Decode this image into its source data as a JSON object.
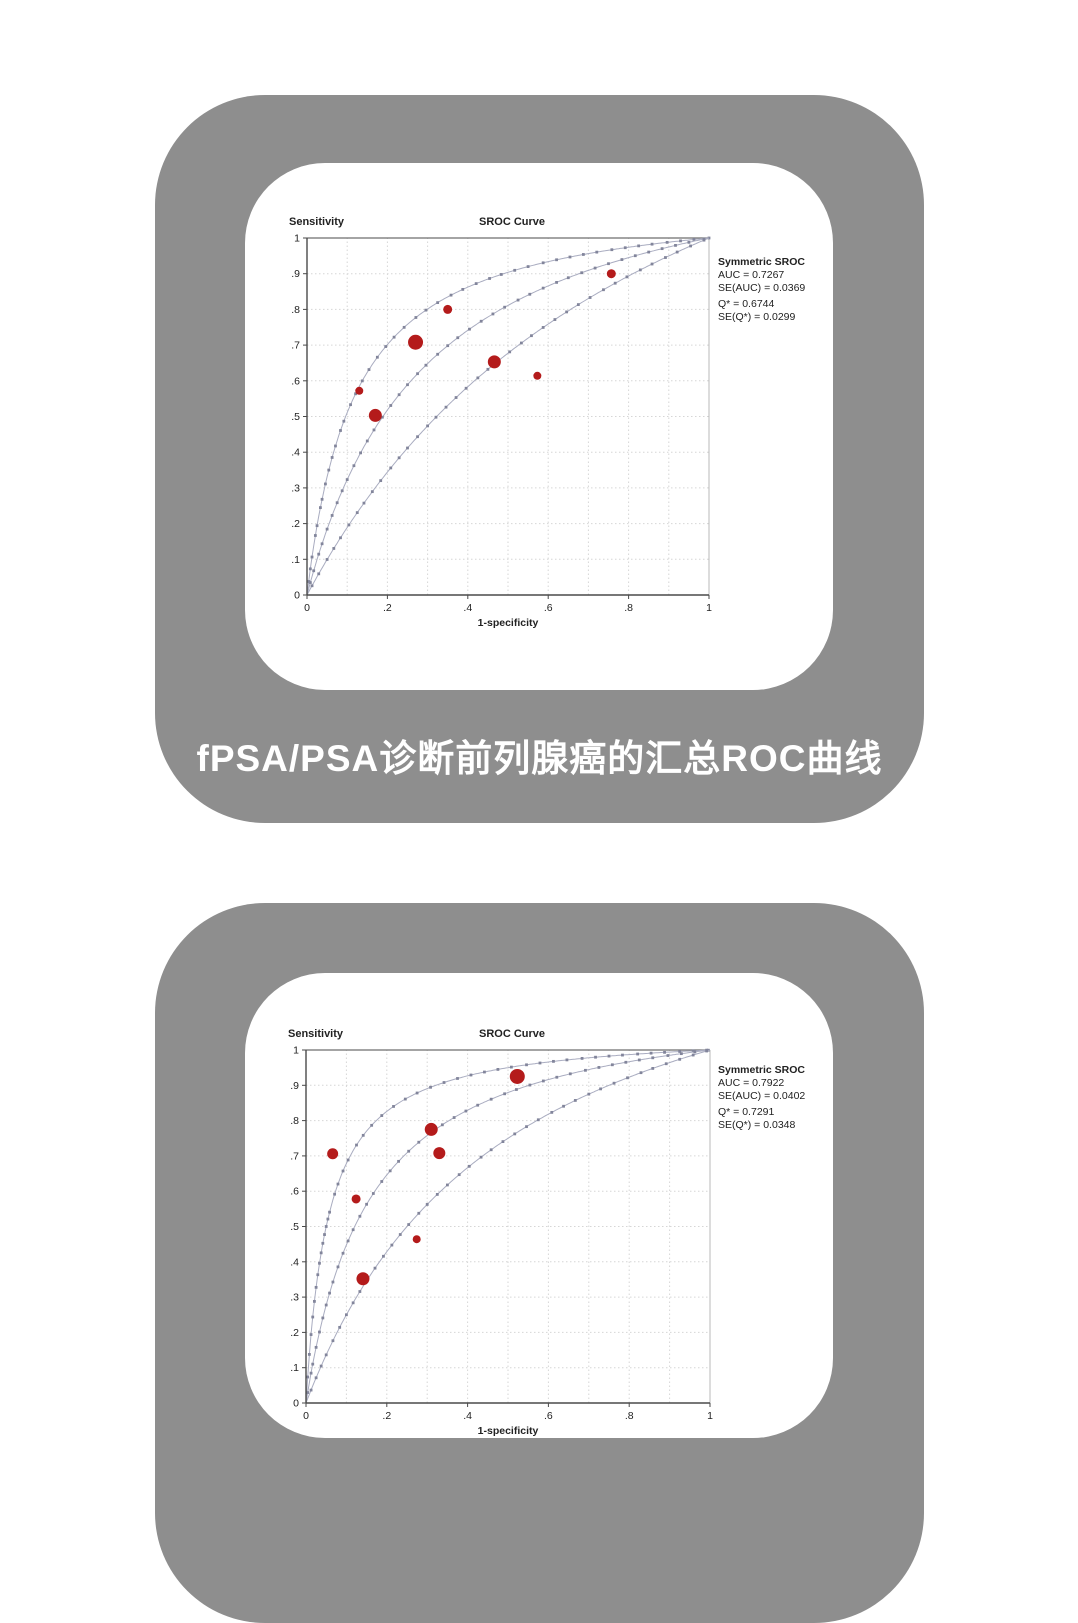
{
  "caption": "fPSA/PSA诊断前列腺癌的汇总ROC曲线",
  "colors": {
    "panel": "#8e8e8e",
    "card": "#ffffff",
    "point": "#b41b1b",
    "curve_line": "#a9acc0",
    "curve_marker": "#82859b",
    "axis": "#4a4a4a",
    "border_top": "#6e6e6e",
    "border_right": "#b8b8b8",
    "grid": "#d6d6d6",
    "text": "#222222"
  },
  "chart_data": [
    {
      "type": "scatter",
      "title": "SROC Curve",
      "ylabel": "Sensitivity",
      "xlabel": "1-specificity",
      "xlim": [
        0,
        1
      ],
      "ylim": [
        0,
        1
      ],
      "grid": true,
      "x_ticks": [
        "0",
        ".2",
        ".4",
        ".6",
        ".8",
        "1"
      ],
      "y_ticks": [
        "0",
        ".1",
        ".2",
        ".3",
        ".4",
        ".5",
        ".6",
        ".7",
        ".8",
        ".9",
        "1"
      ],
      "legend": {
        "position": "right",
        "title": "Symmetric SROC",
        "lines": [
          "AUC = 0.7267",
          "SE(AUC) = 0.0369",
          "Q* = 0.6744",
          "SE(Q*) = 0.0299"
        ]
      },
      "series": [
        {
          "name": "studies",
          "marker": "circle",
          "points": [
            {
              "x": 0.13,
              "y": 0.572,
              "r": 4
            },
            {
              "x": 0.17,
              "y": 0.503,
              "r": 6.5
            },
            {
              "x": 0.27,
              "y": 0.708,
              "r": 7.5
            },
            {
              "x": 0.35,
              "y": 0.8,
              "r": 4.5
            },
            {
              "x": 0.466,
              "y": 0.653,
              "r": 6.5
            },
            {
              "x": 0.573,
              "y": 0.614,
              "r": 4
            },
            {
              "x": 0.757,
              "y": 0.9,
              "r": 4.5
            }
          ]
        }
      ],
      "curves": [
        {
          "name": "confidence-band-upper",
          "k": 9.4
        },
        {
          "name": "sroc-curve",
          "k": 4.3
        },
        {
          "name": "confidence-band-lower",
          "k": 2.1
        }
      ]
    },
    {
      "type": "scatter",
      "title": "SROC Curve",
      "ylabel": "Sensitivity",
      "xlabel": "1-specificity",
      "xlim": [
        0,
        1
      ],
      "ylim": [
        0,
        1
      ],
      "grid": true,
      "x_ticks": [
        "0",
        ".2",
        ".4",
        ".6",
        ".8",
        "1"
      ],
      "y_ticks": [
        "0",
        ".1",
        ".2",
        ".3",
        ".4",
        ".5",
        ".6",
        ".7",
        ".8",
        ".9",
        "1"
      ],
      "legend": {
        "position": "right",
        "title": "Symmetric SROC",
        "lines": [
          "AUC = 0.7922",
          "SE(AUC) = 0.0402",
          "Q* = 0.7291",
          "SE(Q*) = 0.0348"
        ]
      },
      "series": [
        {
          "name": "studies",
          "marker": "circle",
          "points": [
            {
              "x": 0.066,
              "y": 0.706,
              "r": 5.5
            },
            {
              "x": 0.124,
              "y": 0.578,
              "r": 4.5
            },
            {
              "x": 0.141,
              "y": 0.352,
              "r": 6.5
            },
            {
              "x": 0.274,
              "y": 0.464,
              "r": 4
            },
            {
              "x": 0.31,
              "y": 0.775,
              "r": 6.5
            },
            {
              "x": 0.33,
              "y": 0.708,
              "r": 6
            },
            {
              "x": 0.523,
              "y": 0.925,
              "r": 7.5
            }
          ]
        }
      ],
      "curves": [
        {
          "name": "confidence-band-upper",
          "k": 19
        },
        {
          "name": "sroc-curve",
          "k": 7.3
        },
        {
          "name": "confidence-band-lower",
          "k": 3.0
        }
      ]
    }
  ]
}
